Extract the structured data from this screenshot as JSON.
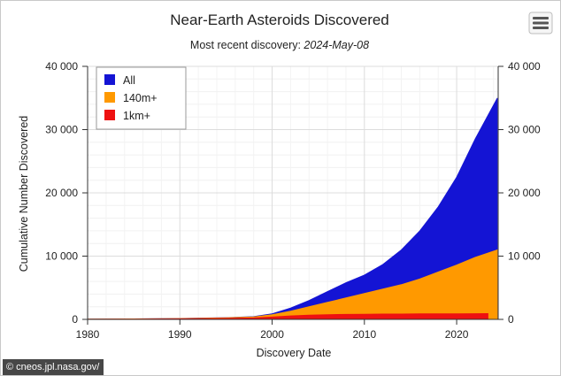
{
  "chart_data": {
    "type": "area",
    "title": "Near-Earth Asteroids Discovered",
    "subtitle_prefix": "Most recent discovery: ",
    "subtitle_date": "2024-May-08",
    "xlabel": "Discovery Date",
    "ylabel": "Cumulative Number Discovered",
    "xlim": [
      1980,
      2024.5
    ],
    "ylim": [
      0,
      40000
    ],
    "x_ticks": [
      1980,
      1990,
      2000,
      2010,
      2020
    ],
    "y_ticks": [
      0,
      10000,
      20000,
      30000,
      40000
    ],
    "y_tick_labels": [
      "0",
      "10 000",
      "20 000",
      "30 000",
      "40 000"
    ],
    "y_axis_right": true,
    "grid": true,
    "legend_position": "top-left",
    "stacking": "overlapping",
    "series": [
      {
        "name": "All",
        "color": "#1414d4",
        "x": [
          1980,
          1985,
          1990,
          1995,
          1998,
          2000,
          2002,
          2004,
          2006,
          2008,
          2010,
          2012,
          2014,
          2016,
          2018,
          2020,
          2022,
          2024.4
        ],
        "y": [
          40,
          80,
          150,
          280,
          450,
          900,
          1800,
          3000,
          4400,
          5800,
          7000,
          8700,
          11000,
          14000,
          17800,
          22500,
          28500,
          35000
        ]
      },
      {
        "name": "140m+",
        "color": "#ff9900",
        "x": [
          1980,
          1985,
          1990,
          1995,
          1998,
          2000,
          2002,
          2004,
          2006,
          2008,
          2010,
          2012,
          2014,
          2016,
          2018,
          2020,
          2022,
          2024.4
        ],
        "y": [
          40,
          80,
          140,
          250,
          400,
          750,
          1300,
          2000,
          2700,
          3400,
          4100,
          4800,
          5500,
          6400,
          7500,
          8600,
          9800,
          11000
        ]
      },
      {
        "name": "1km+",
        "color": "#ee1111",
        "x": [
          1980,
          1985,
          1990,
          1995,
          1998,
          2000,
          2002,
          2004,
          2006,
          2008,
          2010,
          2012,
          2014,
          2016,
          2018,
          2020,
          2022,
          2023.4
        ],
        "y": [
          30,
          60,
          100,
          170,
          240,
          380,
          560,
          690,
          760,
          800,
          830,
          850,
          860,
          875,
          885,
          900,
          910,
          920
        ]
      }
    ]
  },
  "menu": {
    "icon": "hamburger-menu-icon"
  },
  "credit": {
    "text": "© cneos.jpl.nasa.gov/"
  }
}
